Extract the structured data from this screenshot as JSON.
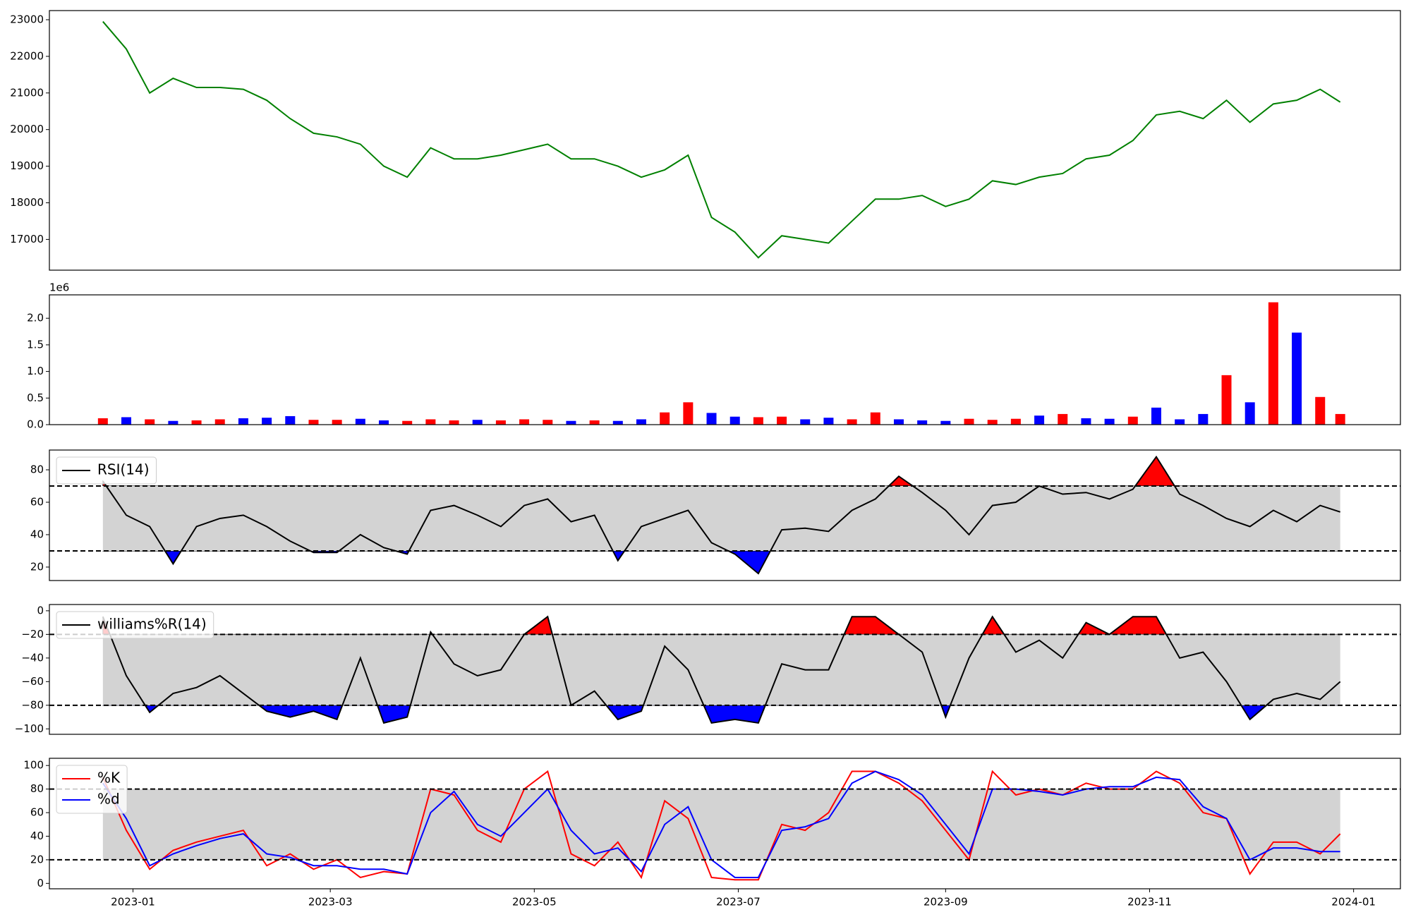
{
  "chart_data": [
    {
      "type": "line",
      "x": [
        "2022-12-23",
        "2022-12-30",
        "2023-01-06",
        "2023-01-13",
        "2023-01-20",
        "2023-01-27",
        "2023-02-03",
        "2023-02-10",
        "2023-02-17",
        "2023-02-24",
        "2023-03-03",
        "2023-03-10",
        "2023-03-17",
        "2023-03-24",
        "2023-03-31",
        "2023-04-07",
        "2023-04-14",
        "2023-04-21",
        "2023-04-28",
        "2023-05-05",
        "2023-05-12",
        "2023-05-19",
        "2023-05-26",
        "2023-06-02",
        "2023-06-09",
        "2023-06-16",
        "2023-06-23",
        "2023-06-30",
        "2023-07-07",
        "2023-07-14",
        "2023-07-21",
        "2023-07-28",
        "2023-08-04",
        "2023-08-11",
        "2023-08-18",
        "2023-08-25",
        "2023-09-01",
        "2023-09-08",
        "2023-09-15",
        "2023-09-22",
        "2023-09-29",
        "2023-10-06",
        "2023-10-13",
        "2023-10-20",
        "2023-10-27",
        "2023-11-03",
        "2023-11-10",
        "2023-11-17",
        "2023-11-24",
        "2023-12-01",
        "2023-12-08",
        "2023-12-15",
        "2023-12-22",
        "2023-12-28"
      ],
      "series": [
        {
          "color": "green",
          "values": [
            22950,
            22200,
            21000,
            21400,
            21150,
            21150,
            21100,
            20800,
            20300,
            19900,
            19800,
            19600,
            19000,
            18700,
            19500,
            19200,
            19200,
            19300,
            19450,
            19600,
            19200,
            19200,
            19000,
            18700,
            18900,
            19300,
            17600,
            17200,
            16500,
            17100,
            17000,
            16900,
            17500,
            18100,
            18100,
            18200,
            17900,
            18100,
            18600,
            18500,
            18700,
            18800,
            19200,
            19300,
            19700,
            20400,
            20500,
            20300,
            20800,
            20200,
            20700,
            20800,
            21100,
            20750
          ]
        }
      ],
      "ylim": [
        16160,
        23250
      ],
      "yticks": [
        17000,
        18000,
        19000,
        20000,
        21000,
        22000,
        23000
      ]
    },
    {
      "type": "bar",
      "y_offset_label": "1e6",
      "values": [
        120000,
        140000,
        100000,
        70000,
        80000,
        100000,
        120000,
        130000,
        160000,
        90000,
        90000,
        110000,
        80000,
        70000,
        100000,
        80000,
        90000,
        80000,
        100000,
        90000,
        70000,
        80000,
        70000,
        100000,
        230000,
        420000,
        220000,
        150000,
        140000,
        150000,
        100000,
        130000,
        100000,
        230000,
        100000,
        80000,
        70000,
        110000,
        90000,
        110000,
        170000,
        200000,
        120000,
        110000,
        150000,
        320000,
        100000,
        200000,
        930000,
        420000,
        2300000,
        1730000,
        520000,
        200000
      ],
      "colors": [
        "red",
        "blue",
        "red",
        "blue",
        "red",
        "red",
        "blue",
        "blue",
        "blue",
        "red",
        "red",
        "blue",
        "blue",
        "red",
        "red",
        "red",
        "blue",
        "red",
        "red",
        "red",
        "blue",
        "red",
        "blue",
        "blue",
        "red",
        "red",
        "blue",
        "blue",
        "red",
        "red",
        "blue",
        "blue",
        "red",
        "red",
        "blue",
        "blue",
        "blue",
        "red",
        "red",
        "red",
        "blue",
        "red",
        "blue",
        "blue",
        "red",
        "blue",
        "blue",
        "blue",
        "red",
        "blue",
        "red",
        "blue",
        "red",
        "red"
      ],
      "ylim": [
        0,
        2440000
      ],
      "yticks": [
        {
          "value": 0,
          "label": "0.0"
        },
        {
          "value": 500000,
          "label": "0.5"
        },
        {
          "value": 1000000,
          "label": "1.0"
        },
        {
          "value": 1500000,
          "label": "1.5"
        },
        {
          "value": 2000000,
          "label": "2.0"
        }
      ]
    },
    {
      "type": "line",
      "series": [
        {
          "name": "RSI(14)",
          "color": "black",
          "values": [
            73,
            52,
            45,
            22,
            45,
            50,
            52,
            45,
            36,
            29,
            29,
            40,
            32,
            28,
            55,
            58,
            52,
            45,
            58,
            62,
            48,
            52,
            24,
            45,
            50,
            55,
            35,
            28,
            16,
            43,
            44,
            42,
            55,
            62,
            76,
            66,
            55,
            40,
            58,
            60,
            70,
            65,
            66,
            62,
            68,
            88,
            65,
            58,
            50,
            45,
            55,
            48,
            58,
            54
          ]
        }
      ],
      "bands": [
        30,
        70
      ],
      "band_color": "lightgray",
      "fill_colors": [
        "blue",
        "red"
      ],
      "ylim": [
        11.7,
        92.2
      ],
      "yticks": [
        20,
        40,
        60,
        80
      ]
    },
    {
      "type": "line",
      "series": [
        {
          "name": "williams%R(14)",
          "color": "black",
          "values": [
            -5,
            -55,
            -86,
            -70,
            -65,
            -55,
            -70,
            -85,
            -90,
            -85,
            -92,
            -40,
            -95,
            -90,
            -18,
            -45,
            -55,
            -50,
            -20,
            -5,
            -80,
            -68,
            -92,
            -85,
            -30,
            -50,
            -95,
            -92,
            -95,
            -45,
            -50,
            -50,
            -5,
            -5,
            -20,
            -35,
            -90,
            -40,
            -5,
            -35,
            -25,
            -40,
            -10,
            -20,
            -5,
            -5,
            -40,
            -35,
            -60,
            -92,
            -75,
            -70,
            -75,
            -60
          ]
        }
      ],
      "bands": [
        -80,
        -20
      ],
      "band_color": "lightgray",
      "fill_colors": [
        "blue",
        "red"
      ],
      "ylim": [
        -104.6,
        5.3
      ],
      "yticks": [
        {
          "value": -100,
          "label": "−100"
        },
        {
          "value": -80,
          "label": "−80"
        },
        {
          "value": -60,
          "label": "−60"
        },
        {
          "value": -40,
          "label": "−40"
        },
        {
          "value": -20,
          "label": "−20"
        },
        0
      ]
    },
    {
      "type": "line",
      "series": [
        {
          "name": "%K",
          "color": "red",
          "values": [
            90,
            45,
            12,
            28,
            35,
            40,
            45,
            15,
            25,
            12,
            20,
            5,
            10,
            8,
            80,
            75,
            45,
            35,
            80,
            95,
            25,
            15,
            35,
            5,
            70,
            55,
            5,
            3,
            3,
            50,
            45,
            60,
            95,
            95,
            85,
            70,
            45,
            20,
            95,
            75,
            80,
            75,
            85,
            80,
            80,
            95,
            85,
            60,
            55,
            8,
            35,
            35,
            25,
            42
          ]
        },
        {
          "name": "%d",
          "color": "blue",
          "values": [
            85,
            55,
            15,
            25,
            32,
            38,
            42,
            25,
            22,
            15,
            15,
            12,
            12,
            8,
            60,
            78,
            50,
            40,
            60,
            80,
            45,
            25,
            30,
            10,
            50,
            65,
            20,
            5,
            5,
            45,
            48,
            55,
            85,
            95,
            88,
            75,
            50,
            25,
            80,
            80,
            78,
            75,
            80,
            82,
            82,
            90,
            88,
            65,
            55,
            20,
            30,
            30,
            27,
            27
          ]
        }
      ],
      "bands": [
        20,
        80
      ],
      "band_color": "lightgray",
      "ylim": [
        -4.6,
        106.1
      ],
      "yticks": [
        0,
        20,
        40,
        60,
        80,
        100
      ],
      "xlim": [
        "2022-12-07",
        "2024-01-15"
      ],
      "xticks": [
        {
          "value": "2023-01-01",
          "label": "2023-01"
        },
        {
          "value": "2023-03-01",
          "label": "2023-03"
        },
        {
          "value": "2023-05-01",
          "label": "2023-05"
        },
        {
          "value": "2023-07-01",
          "label": "2023-07"
        },
        {
          "value": "2023-09-01",
          "label": "2023-09"
        },
        {
          "value": "2023-11-01",
          "label": "2023-11"
        },
        {
          "value": "2024-01-01",
          "label": "2024-01"
        }
      ]
    }
  ]
}
